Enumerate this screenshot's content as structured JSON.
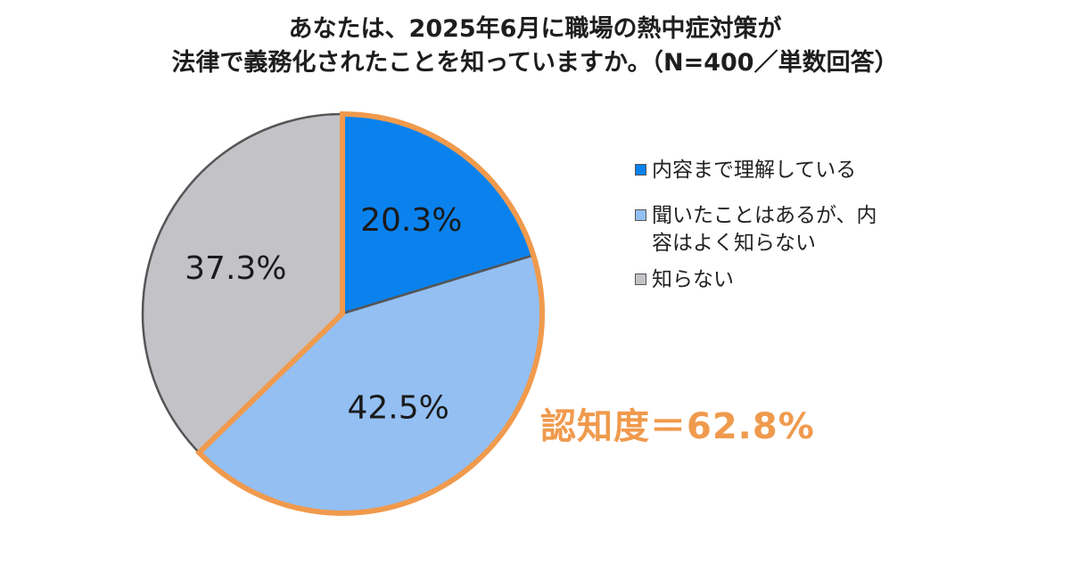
{
  "title": {
    "line1": "あなたは、2025年6月に職場の熱中症対策が",
    "line2": "法律で義務化されたことを知っていますか。（N=400／単数回答）"
  },
  "awareness_label": "認知度＝62.8%",
  "colors": {
    "understand": "#0a82ee",
    "heard": "#93bff2",
    "unknown": "#c3c2c7",
    "highlight": "#f09a4d",
    "divider": "#555555"
  },
  "chart_data": {
    "type": "pie",
    "title": "あなたは、2025年6月に職場の熱中症対策が法律で義務化されたことを知っていますか。（N=400／単数回答）",
    "start_angle": "12 o'clock",
    "direction": "clockwise",
    "legend_position": "right",
    "highlighted_slices": [
      "内容まで理解している",
      "聞いたことはあるが、内容はよく知らない"
    ],
    "slices": [
      {
        "label": "内容まで理解している",
        "value": 20.3,
        "value_label": "20.3%",
        "color": "#0a82ee"
      },
      {
        "label": "聞いたことはあるが、内容はよく知らない",
        "value": 42.5,
        "value_label": "42.5%",
        "color": "#93bff2"
      },
      {
        "label": "知らない",
        "value": 37.3,
        "value_label": "37.3%",
        "color": "#c3c2c7"
      }
    ]
  },
  "legend": {
    "items": [
      {
        "line1": "内容まで理解している",
        "line2": ""
      },
      {
        "line1": "聞いたことはあるが、内",
        "line2": "容はよく知らない"
      },
      {
        "line1": "知らない",
        "line2": ""
      }
    ]
  }
}
